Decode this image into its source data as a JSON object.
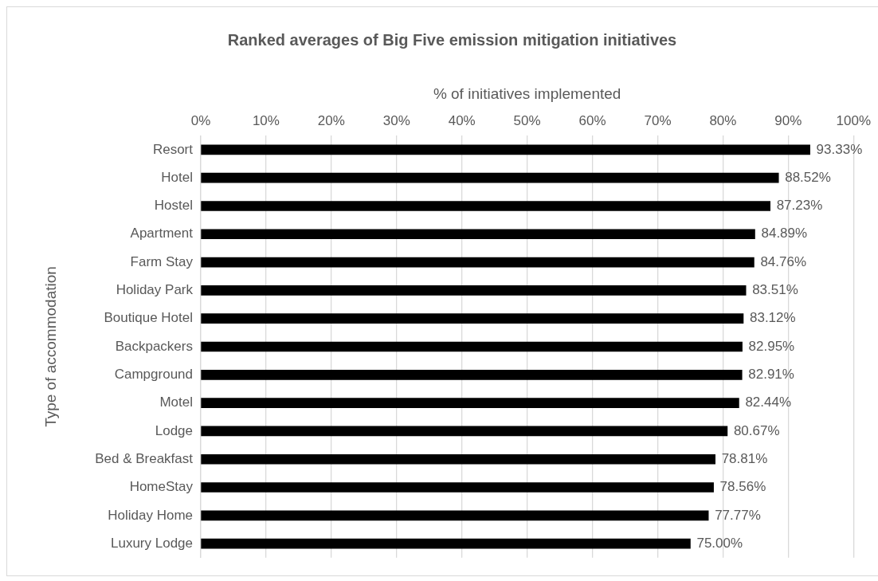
{
  "chart_data": {
    "type": "bar",
    "orientation": "horizontal",
    "title": "Ranked averages of Big Five emission mitigation initiatives",
    "xlabel": "% of initiatives implemented",
    "ylabel": "Type of accommodation",
    "categories": [
      "Resort",
      "Hotel",
      "Hostel",
      "Apartment",
      "Farm Stay",
      "Holiday Park",
      "Boutique Hotel",
      "Backpackers",
      "Campground",
      "Motel",
      "Lodge",
      "Bed & Breakfast",
      "HomeStay",
      "Holiday Home",
      "Luxury Lodge"
    ],
    "values": [
      93.33,
      88.52,
      87.23,
      84.89,
      84.76,
      83.51,
      83.12,
      82.95,
      82.91,
      82.44,
      80.67,
      78.81,
      78.56,
      77.77,
      75.0
    ],
    "value_labels": [
      "93.33%",
      "88.52%",
      "87.23%",
      "84.89%",
      "84.76%",
      "83.51%",
      "83.12%",
      "82.95%",
      "82.91%",
      "82.44%",
      "80.67%",
      "78.81%",
      "78.56%",
      "77.77%",
      "75.00%"
    ],
    "color": "#000000",
    "xlim": [
      0,
      100
    ],
    "xticks": [
      {
        "value": 0,
        "label": "0%"
      },
      {
        "value": 10,
        "label": "10%"
      },
      {
        "value": 20,
        "label": "20%"
      },
      {
        "value": 30,
        "label": "30%"
      },
      {
        "value": 40,
        "label": "40%"
      },
      {
        "value": 50,
        "label": "50%"
      },
      {
        "value": 60,
        "label": "60%"
      },
      {
        "value": 70,
        "label": "70%"
      },
      {
        "value": 80,
        "label": "80%"
      },
      {
        "value": 90,
        "label": "90%"
      },
      {
        "value": 100,
        "label": "100%"
      }
    ],
    "grid": "x",
    "legend": false
  }
}
